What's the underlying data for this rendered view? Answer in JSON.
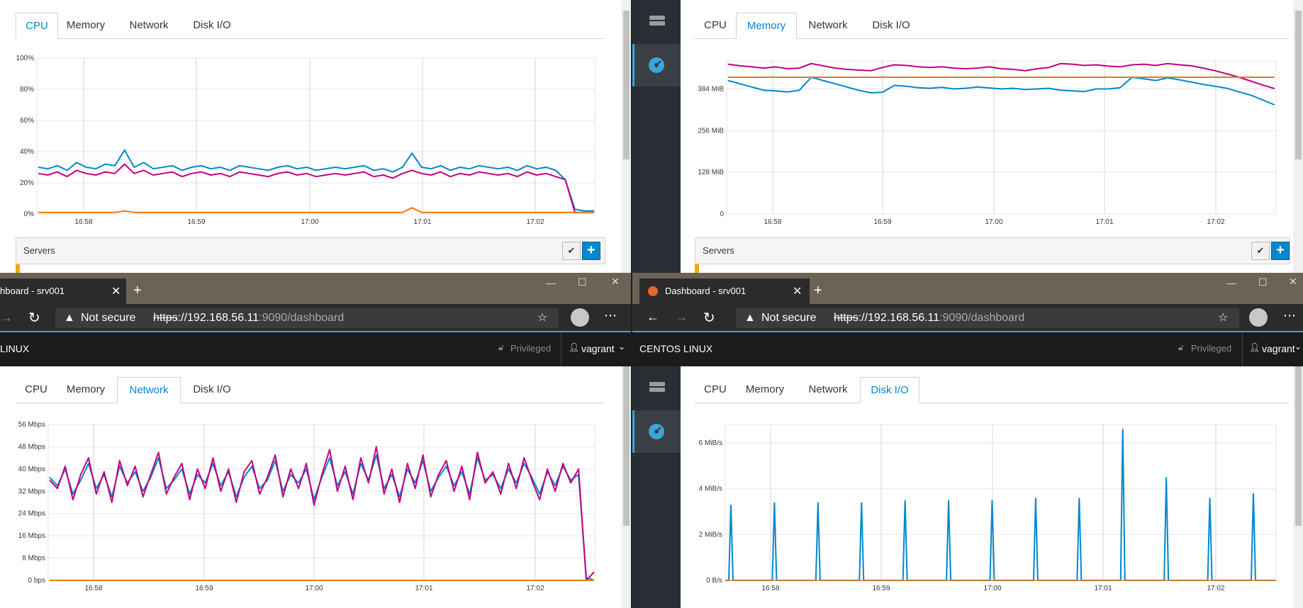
{
  "tabs": [
    "CPU",
    "Memory",
    "Network",
    "Disk I/O"
  ],
  "servers_label": "Servers",
  "browser": {
    "tab_title": "Dashboard - srv001",
    "tab_title_cut": "hboard - srv001",
    "not_secure": "Not secure",
    "url_scheme": "https",
    "url_host": "://192.168.56.11",
    "url_rest": ":9090/dashboard"
  },
  "masthead": {
    "brand": "CENTOS LINUX",
    "brand_cut": "LINUX",
    "privileged": "Privileged",
    "user": "vagrant"
  },
  "colors": {
    "accent": "#0088ce",
    "series_a": "#0088ce",
    "series_b": "#c4007f",
    "series_c": "#ec7a08"
  },
  "panels": [
    {
      "active_tab": "CPU",
      "chart_data": {
        "type": "line",
        "x_ticks": [
          "16:58",
          "16:59",
          "17:00",
          "17:01",
          "17:02"
        ],
        "y_ticks": [
          "0%",
          "20%",
          "40%",
          "60%",
          "80%",
          "100%"
        ],
        "ylim": [
          0,
          100
        ],
        "x_range_minutes": [
          16.88,
          17.04
        ],
        "series": [
          {
            "color": "#0088ce",
            "values": [
              30,
              29,
              31,
              28,
              33,
              30,
              29,
              32,
              31,
              41,
              30,
              33,
              29,
              30,
              31,
              28,
              30,
              31,
              29,
              30,
              28,
              31,
              30,
              29,
              28,
              30,
              31,
              29,
              30,
              28,
              29,
              30,
              29,
              30,
              31,
              28,
              29,
              27,
              30,
              39,
              30,
              29,
              31,
              28,
              30,
              29,
              31,
              30,
              29,
              30,
              28,
              31,
              29,
              30,
              28,
              22,
              3,
              2,
              2
            ]
          },
          {
            "color": "#c4007f",
            "values": [
              26,
              25,
              27,
              24,
              28,
              26,
              25,
              27,
              26,
              32,
              26,
              28,
              25,
              26,
              27,
              24,
              26,
              27,
              25,
              26,
              24,
              27,
              26,
              25,
              24,
              26,
              27,
              25,
              26,
              24,
              25,
              26,
              25,
              26,
              27,
              24,
              25,
              23,
              26,
              28,
              26,
              25,
              27,
              24,
              26,
              25,
              27,
              26,
              25,
              26,
              24,
              27,
              25,
              26,
              24,
              22,
              1,
              1,
              1
            ]
          },
          {
            "color": "#ec7a08",
            "values": [
              1,
              1,
              1,
              1,
              1,
              1,
              1,
              1,
              1,
              2,
              1,
              1,
              1,
              1,
              1,
              1,
              1,
              1,
              1,
              1,
              1,
              1,
              1,
              1,
              1,
              1,
              1,
              1,
              1,
              1,
              1,
              1,
              1,
              1,
              1,
              1,
              1,
              1,
              1,
              4,
              1,
              1,
              1,
              1,
              1,
              1,
              1,
              1,
              1,
              1,
              1,
              1,
              1,
              1,
              1,
              1,
              1,
              1,
              1
            ]
          }
        ]
      }
    },
    {
      "active_tab": "Memory",
      "chart_data": {
        "type": "line",
        "x_ticks": [
          "16:58",
          "16:59",
          "17:00",
          "17:01",
          "17:02"
        ],
        "y_ticks": [
          "0",
          "128 MiB",
          "256 MiB",
          "384 MiB"
        ],
        "ylim": [
          0,
          470
        ],
        "series": [
          {
            "color": "#0088ce",
            "values": [
              410,
              400,
              390,
              380,
              378,
              375,
              380,
              420,
              410,
              400,
              390,
              380,
              372,
              374,
              395,
              392,
              388,
              386,
              389,
              384,
              386,
              390,
              387,
              384,
              386,
              382,
              384,
              386,
              380,
              378,
              376,
              384,
              384,
              388,
              420,
              415,
              410,
              418,
              412,
              405,
              398,
              392,
              386,
              375,
              365,
              350,
              335
            ]
          },
          {
            "color": "#c4007f",
            "values": [
              460,
              455,
              452,
              448,
              452,
              446,
              448,
              462,
              455,
              448,
              444,
              442,
              440,
              450,
              458,
              456,
              452,
              450,
              452,
              448,
              446,
              448,
              452,
              446,
              444,
              440,
              446,
              450,
              462,
              460,
              456,
              458,
              454,
              452,
              458,
              460,
              456,
              462,
              458,
              455,
              448,
              440,
              430,
              420,
              408,
              396,
              385
            ]
          },
          {
            "color": "#ec7a08",
            "values": [
              420,
              420,
              420,
              420,
              420,
              420,
              420,
              420,
              420,
              420,
              420,
              420,
              420,
              420,
              420,
              420,
              420,
              420,
              420,
              420,
              420,
              420,
              420,
              420,
              420,
              420,
              420,
              420,
              420,
              420,
              420,
              420,
              420,
              420,
              420,
              420,
              420,
              420,
              420,
              420,
              420,
              420,
              420,
              420,
              420,
              420,
              420
            ]
          }
        ]
      }
    },
    {
      "active_tab": "Network",
      "chart_data": {
        "type": "line",
        "x_ticks": [
          "16:58",
          "16:59",
          "17:00",
          "17:01",
          "17:02"
        ],
        "y_ticks": [
          "0 bps",
          "8 Mbps",
          "16 Mbps",
          "24 Mbps",
          "32 Mbps",
          "40 Mbps",
          "48 Mbps",
          "56 Mbps"
        ],
        "ylim": [
          0,
          56
        ],
        "series": [
          {
            "color": "#0088ce",
            "values": [
              37,
              34,
              40,
              31,
              36,
              42,
              33,
              38,
              30,
              41,
              35,
              39,
              32,
              37,
              44,
              33,
              36,
              40,
              31,
              38,
              35,
              42,
              34,
              39,
              30,
              37,
              41,
              33,
              36,
              43,
              32,
              38,
              35,
              40,
              29,
              37,
              44,
              34,
              39,
              31,
              42,
              36,
              45,
              33,
              38,
              30,
              40,
              35,
              43,
              32,
              37,
              41,
              34,
              39,
              31,
              44,
              36,
              38,
              33,
              40,
              35,
              42,
              37,
              31,
              39,
              34,
              41,
              36,
              38,
              1,
              0
            ]
          },
          {
            "color": "#c4007f",
            "values": [
              36,
              33,
              41,
              29,
              38,
              44,
              31,
              39,
              28,
              43,
              34,
              41,
              30,
              38,
              46,
              31,
              37,
              42,
              29,
              40,
              33,
              44,
              32,
              40,
              28,
              39,
              43,
              31,
              37,
              45,
              30,
              40,
              33,
              42,
              27,
              38,
              47,
              32,
              41,
              29,
              44,
              35,
              48,
              31,
              40,
              28,
              42,
              33,
              45,
              30,
              38,
              43,
              32,
              41,
              29,
              46,
              35,
              39,
              31,
              42,
              33,
              44,
              36,
              29,
              40,
              32,
              42,
              35,
              40,
              0,
              3
            ]
          },
          {
            "color": "#ec7a08",
            "values": [
              0,
              0,
              0,
              0,
              0,
              0,
              0,
              0,
              0,
              0,
              0,
              0,
              0,
              0,
              0,
              0,
              0,
              0,
              0,
              0,
              0,
              0,
              0,
              0,
              0,
              0,
              0,
              0,
              0,
              0,
              0,
              0,
              0,
              0,
              0,
              0,
              0,
              0,
              0,
              0,
              0,
              0,
              0,
              0,
              0,
              0,
              0,
              0,
              0,
              0,
              0,
              0,
              0,
              0,
              0,
              0,
              0,
              0,
              0,
              0,
              0,
              0,
              0,
              0,
              0,
              0,
              0,
              0,
              0,
              0,
              0
            ]
          }
        ]
      }
    },
    {
      "active_tab": "Disk I/O",
      "chart_data": {
        "type": "line",
        "x_ticks": [
          "16:58",
          "16:59",
          "17:00",
          "17:01",
          "17:02"
        ],
        "y_ticks": [
          "0 B/s",
          "2 MiB/s",
          "4 MiB/s",
          "6 MiB/s"
        ],
        "ylim": [
          0,
          6.8
        ],
        "spikes_mib_s": [
          3.3,
          3.4,
          3.4,
          3.4,
          3.5,
          3.5,
          3.5,
          3.6,
          3.6,
          6.6,
          4.5,
          3.6,
          3.8
        ],
        "series": [
          {
            "color": "#0088ce",
            "name": ""
          },
          {
            "color": "#ec7a08",
            "name": ""
          }
        ]
      }
    }
  ]
}
